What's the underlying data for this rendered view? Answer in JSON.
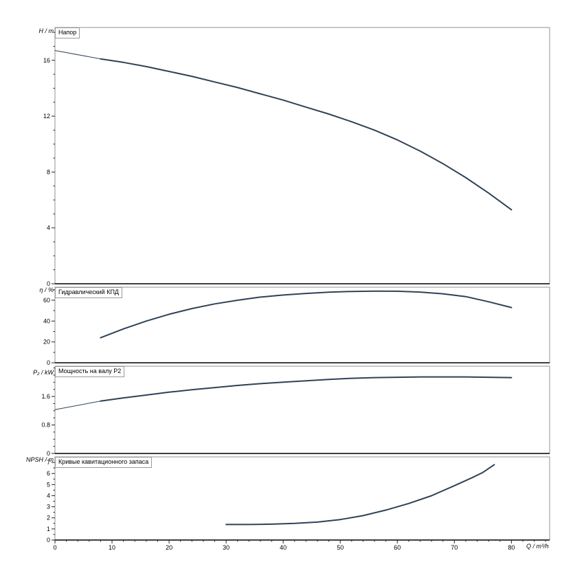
{
  "x_axis": {
    "label": "Q / m³/h",
    "lim": [
      0,
      86.7
    ],
    "ticks": [
      0,
      10,
      20,
      30,
      40,
      50,
      60,
      70,
      80
    ],
    "minor_step": 2
  },
  "colors": {
    "curve": "#2e4154",
    "frame": "#909090",
    "axis": "#222222",
    "text": "#000000",
    "box_border": "#999999"
  },
  "chart_data": [
    {
      "type": "line",
      "title": "Напор",
      "ylabel": "H / m",
      "xlabel": "Q / m³/h",
      "ylim": [
        0,
        18.35
      ],
      "yticks": [
        0,
        4,
        8,
        12,
        16
      ],
      "yminor_step": 1,
      "grid": false,
      "legend": "none",
      "series": [
        {
          "name": "head-extension",
          "width": 1,
          "x": [
            0,
            8
          ],
          "y": [
            16.7,
            16.1
          ]
        },
        {
          "name": "head-curve",
          "width": 2,
          "x": [
            8,
            12,
            16,
            20,
            24,
            28,
            32,
            36,
            40,
            44,
            48,
            52,
            56,
            60,
            64,
            68,
            72,
            76,
            80
          ],
          "y": [
            16.1,
            15.85,
            15.55,
            15.2,
            14.85,
            14.45,
            14.05,
            13.6,
            13.15,
            12.65,
            12.15,
            11.6,
            11.0,
            10.3,
            9.5,
            8.6,
            7.6,
            6.5,
            5.3
          ]
        }
      ]
    },
    {
      "type": "line",
      "title": "Гидравлический КПД",
      "ylabel": "η / %",
      "xlabel": "Q / m³/h",
      "ylim": [
        0,
        72.5
      ],
      "yticks": [
        0,
        20,
        40,
        60
      ],
      "yminor_step": 10,
      "grid": false,
      "legend": "none",
      "series": [
        {
          "name": "efficiency-curve",
          "width": 2,
          "x": [
            8,
            12,
            16,
            20,
            24,
            28,
            32,
            36,
            40,
            44,
            48,
            52,
            56,
            60,
            64,
            68,
            72,
            76,
            80
          ],
          "y": [
            24,
            32.5,
            40,
            46.5,
            52,
            56.5,
            60,
            63,
            65,
            66.5,
            67.7,
            68.4,
            68.7,
            68.6,
            67.8,
            66.2,
            63.5,
            58.5,
            53
          ]
        }
      ]
    },
    {
      "type": "line",
      "title": "Мощность на валу P2",
      "ylabel": "P₂ / kW",
      "xlabel": "Q / m³/h",
      "ylim": [
        0,
        2.45
      ],
      "yticks": [
        0,
        0.8,
        1.6
      ],
      "yminor_step": 0.2,
      "grid": false,
      "legend": "none",
      "series": [
        {
          "name": "power-extension",
          "width": 1,
          "x": [
            0,
            8
          ],
          "y": [
            1.23,
            1.47
          ]
        },
        {
          "name": "power-curve",
          "width": 2,
          "x": [
            8,
            12,
            16,
            20,
            24,
            28,
            32,
            36,
            40,
            44,
            48,
            52,
            56,
            60,
            64,
            68,
            72,
            76,
            80
          ],
          "y": [
            1.47,
            1.56,
            1.64,
            1.72,
            1.79,
            1.85,
            1.91,
            1.96,
            2.0,
            2.04,
            2.08,
            2.11,
            2.13,
            2.14,
            2.15,
            2.15,
            2.15,
            2.14,
            2.13
          ]
        }
      ]
    },
    {
      "type": "line",
      "title": "Кривые кавитационного запаса",
      "ylabel": "NPSH / m",
      "xlabel": "Q / m³/h",
      "ylim": [
        0,
        7.5
      ],
      "yticks": [
        0,
        1,
        2,
        3,
        4,
        5,
        6,
        7
      ],
      "yminor_step": 0.5,
      "grid": false,
      "legend": "none",
      "series": [
        {
          "name": "npsh-curve",
          "width": 2,
          "x": [
            30,
            34,
            38,
            42,
            46,
            50,
            54,
            58,
            62,
            66,
            70,
            73,
            75,
            77
          ],
          "y": [
            1.4,
            1.4,
            1.43,
            1.5,
            1.62,
            1.85,
            2.2,
            2.7,
            3.3,
            4.0,
            4.9,
            5.6,
            6.1,
            6.8
          ]
        }
      ]
    }
  ]
}
